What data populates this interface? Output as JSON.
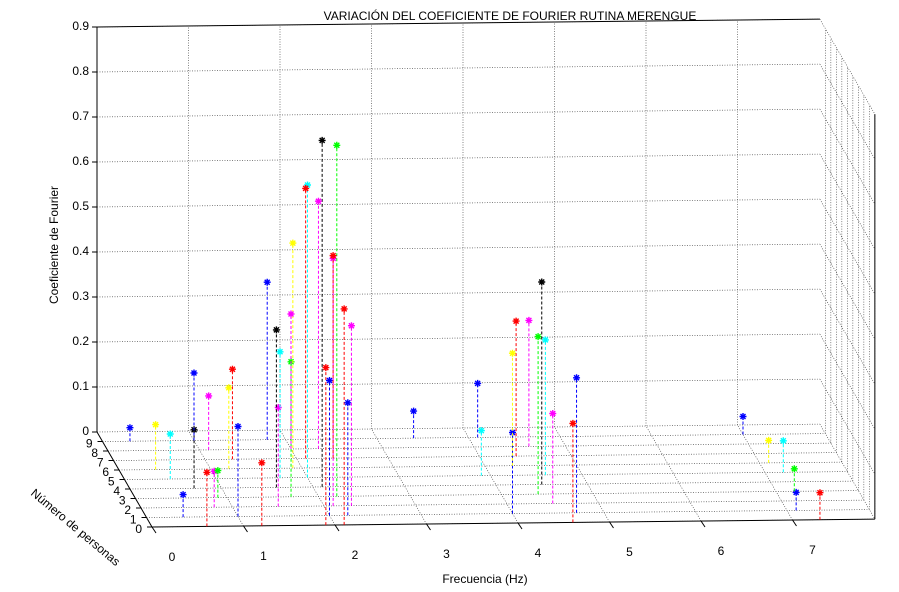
{
  "chart_data": {
    "type": "stem3",
    "title": "VARIACIÓN DEL COEFICIENTE DE FOURIER RUTINA MERENGUE",
    "xlabel": "Frecuencia (Hz)",
    "ylabel": "Número de personas",
    "zlabel": "Coeficiente de Fourier",
    "xlim": [
      0,
      7.9
    ],
    "ylim": [
      0,
      10
    ],
    "zlim": [
      0,
      0.9
    ],
    "xticks": [
      0,
      1,
      2,
      3,
      4,
      5,
      6,
      7
    ],
    "yticks": [
      0,
      1,
      2,
      3,
      4,
      5,
      6,
      7,
      8,
      9
    ],
    "zticks": [
      0,
      0.1,
      0.2,
      0.3,
      0.4,
      0.5,
      0.6,
      0.7,
      0.8,
      0.9
    ],
    "grid": true,
    "series": [
      {
        "person": 0,
        "color": "#ff0000",
        "x": [
          0.6,
          1.2,
          1.9,
          2.1,
          4.6,
          7.3
        ],
        "values": [
          0.12,
          0.14,
          0.35,
          0.48,
          0.22,
          0.06
        ]
      },
      {
        "person": 1,
        "color": "#0000ff",
        "x": [
          0.4,
          1.0,
          2.0,
          2.2,
          4.0,
          4.7,
          7.1
        ],
        "values": [
          0.05,
          0.2,
          0.3,
          0.25,
          0.18,
          0.3,
          0.04
        ]
      },
      {
        "person": 2,
        "color": "#ff00ff",
        "x": [
          0.8,
          1.5,
          2.1,
          2.3,
          4.5
        ],
        "values": [
          0.08,
          0.22,
          0.55,
          0.4,
          0.2
        ]
      },
      {
        "person": 3,
        "color": "#00ff00",
        "x": [
          0.9,
          1.7,
          2.2,
          4.4,
          7.2
        ],
        "values": [
          0.06,
          0.3,
          0.78,
          0.35,
          0.05
        ]
      },
      {
        "person": 4,
        "color": "#000000",
        "x": [
          0.7,
          1.6,
          2.1,
          4.5
        ],
        "values": [
          0.13,
          0.35,
          0.77,
          0.45
        ]
      },
      {
        "person": 5,
        "color": "#00ffff",
        "x": [
          0.5,
          1.7,
          2.0,
          3.9,
          4.6,
          7.2
        ],
        "values": [
          0.1,
          0.28,
          0.65,
          0.1,
          0.3,
          0.07
        ]
      },
      {
        "person": 6,
        "color": "#ffff00",
        "x": [
          0.4,
          1.2,
          1.9,
          4.3,
          7.1
        ],
        "values": [
          0.1,
          0.18,
          0.5,
          0.25,
          0.05
        ]
      },
      {
        "person": 7,
        "color": "#ff0000",
        "x": [
          1.3,
          2.1,
          2.4,
          4.4
        ],
        "values": [
          0.2,
          0.6,
          0.45,
          0.3
        ]
      },
      {
        "person": 8,
        "color": "#ff00ff",
        "x": [
          1.1,
          2.0,
          2.3,
          4.6
        ],
        "values": [
          0.12,
          0.3,
          0.55,
          0.28
        ]
      },
      {
        "person": 9,
        "color": "#0000ff",
        "x": [
          0.3,
          1.0,
          1.8,
          3.4,
          4.1,
          7.0
        ],
        "values": [
          0.03,
          0.15,
          0.35,
          0.06,
          0.12,
          0.04
        ]
      }
    ]
  }
}
